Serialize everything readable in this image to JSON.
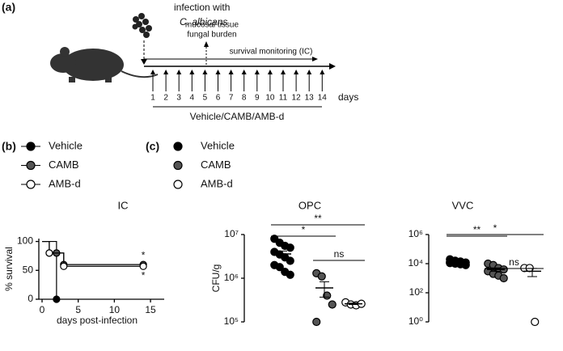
{
  "panel_labels": [
    "(a)",
    "(b)",
    "(c)"
  ],
  "timeline": {
    "infection": "infection with",
    "organism": "C. albicans",
    "burden": [
      "mucosal tissue",
      "fungal burden"
    ],
    "monitoring": "survival monitoring (IC)",
    "days": [
      1,
      2,
      3,
      4,
      5,
      6,
      7,
      8,
      9,
      10,
      11,
      12,
      13,
      14
    ],
    "days_label": "days",
    "treatment": "Vehicle/CAMB/AMB-d"
  },
  "chart_data": [
    {
      "type": "step",
      "title": "IC",
      "xlabel": "days post-infection",
      "ylabel": "% survival",
      "xlim": [
        0,
        16
      ],
      "xticks": [
        0,
        5,
        10,
        15
      ],
      "ylim": [
        0,
        105
      ],
      "yticks": [
        0,
        50,
        100
      ],
      "series": [
        {
          "name": "Vehicle",
          "color": "#000000",
          "edgecolor": "#000000",
          "x": [
            0,
            1,
            2,
            2
          ],
          "values": [
            100,
            80,
            80,
            0
          ]
        },
        {
          "name": "CAMB",
          "color": "#555555",
          "edgecolor": "#000000",
          "x": [
            0,
            2,
            3,
            14
          ],
          "values": [
            100,
            80,
            60,
            60
          ]
        },
        {
          "name": "AMB-d",
          "color": "#ffffff",
          "edgecolor": "#000000",
          "x": [
            0,
            1,
            3,
            14
          ],
          "values": [
            100,
            80,
            57,
            57
          ]
        }
      ],
      "annotations": [
        "*",
        "*"
      ]
    },
    {
      "type": "strip",
      "title": "OPC",
      "ylabel": "CFU/g",
      "log": true,
      "ylim": [
        100000,
        10000000
      ],
      "yticks": [
        {
          "value": 100000,
          "label": "10⁵"
        },
        {
          "value": 1000000,
          "label": "10⁶"
        },
        {
          "value": 10000000,
          "label": "10⁷"
        }
      ],
      "series": [
        {
          "name": "Vehicle",
          "color": "#000000",
          "edgecolor": "#000000",
          "values": [
            8000000,
            6500000,
            5500000,
            5000000,
            4000000,
            3500000,
            3000000,
            2500000,
            2000000,
            1800000,
            1400000,
            1200000
          ],
          "mean": 3600000,
          "sem": 600000
        },
        {
          "name": "CAMB",
          "color": "#555555",
          "edgecolor": "#000000",
          "values": [
            1300000,
            1100000,
            400000,
            250000,
            100000
          ],
          "mean": 600000,
          "sem": 230000
        },
        {
          "name": "AMB-d",
          "color": "#ffffff",
          "edgecolor": "#000000",
          "values": [
            280000,
            250000,
            240000,
            260000
          ],
          "mean": 260000,
          "sem": 10000
        }
      ],
      "significance": [
        {
          "text": "**",
          "pair": [
            0,
            2
          ]
        },
        {
          "text": "*",
          "pair": [
            0,
            1
          ]
        },
        {
          "text": "ns",
          "pair": [
            1,
            2
          ]
        }
      ]
    },
    {
      "type": "strip",
      "title": "VVC",
      "log": true,
      "ylim": [
        1,
        1000000
      ],
      "yticks": [
        {
          "value": 1,
          "label": "10⁰"
        },
        {
          "value": 100,
          "label": "10²"
        },
        {
          "value": 10000,
          "label": "10⁴"
        },
        {
          "value": 1000000,
          "label": "10⁶"
        }
      ],
      "series": [
        {
          "color": "#000000",
          "edgecolor": "#000000",
          "values": [
            20000,
            16000,
            14000,
            12000,
            11000,
            10000,
            9000,
            8000,
            13000,
            15000
          ],
          "mean": 13000,
          "sem": 1200
        },
        {
          "color": "#555555",
          "edgecolor": "#000000",
          "values": [
            10000,
            8000,
            5000,
            4000,
            3000,
            2000,
            1500,
            1000
          ],
          "mean": 4000,
          "sem": 1100
        },
        {
          "color": "#ffffff",
          "edgecolor": "#000000",
          "values": [
            5000,
            5000,
            1
          ],
          "mean": 3000,
          "sem": 1700
        }
      ],
      "significance": [
        {
          "text": "*",
          "pair": [
            0,
            2
          ]
        },
        {
          "text": "**",
          "pair": [
            0,
            1
          ]
        },
        {
          "text": "ns",
          "pair": [
            1,
            2
          ]
        }
      ]
    }
  ]
}
